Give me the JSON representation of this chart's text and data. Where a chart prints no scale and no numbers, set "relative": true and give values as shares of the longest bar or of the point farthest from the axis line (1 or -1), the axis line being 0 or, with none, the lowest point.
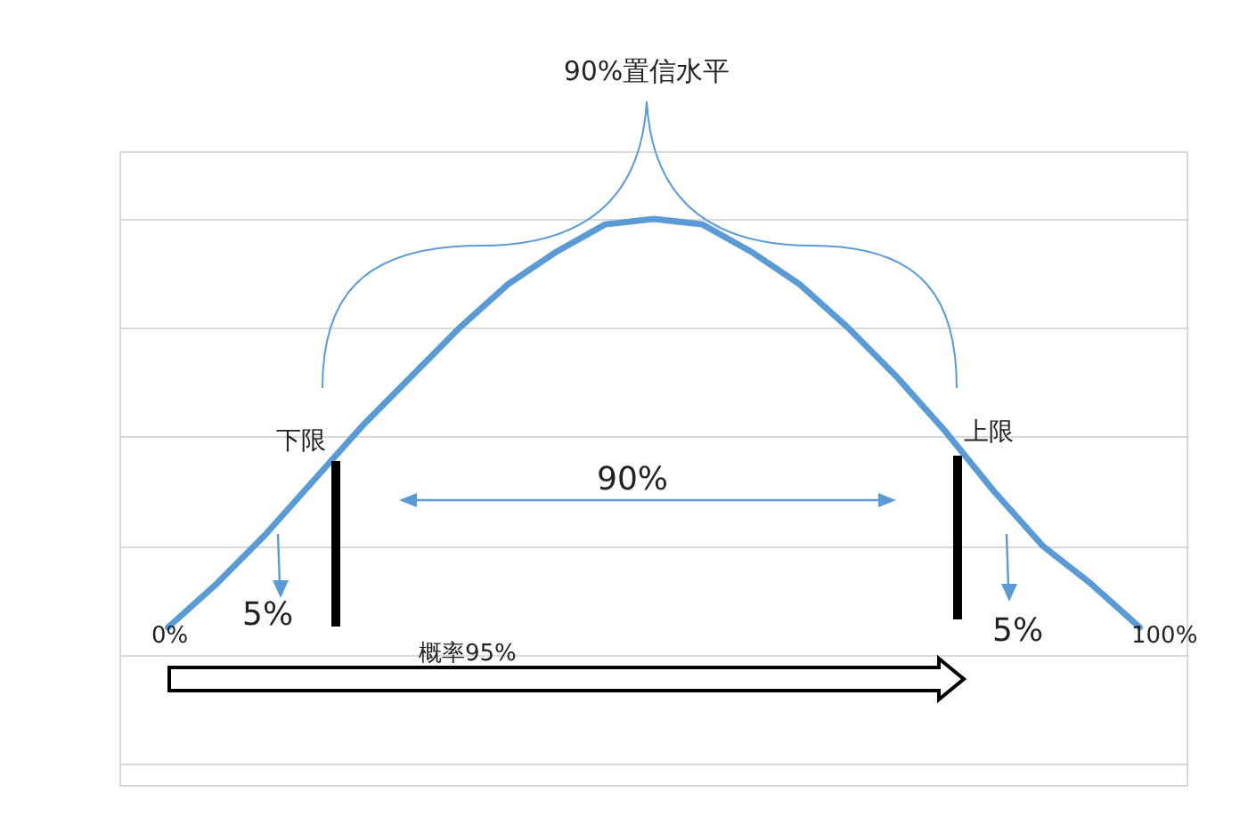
{
  "chart_data": {
    "type": "line",
    "relative": true,
    "grid": "y",
    "categories": [
      null,
      null,
      null,
      null,
      null,
      null,
      null,
      null,
      null,
      null,
      null,
      null,
      null,
      null,
      null,
      null,
      null,
      null,
      null,
      null,
      null
    ],
    "series": [
      {
        "color": "#5b9bd5",
        "values": [
          0.25,
          0.33,
          0.42,
          0.52,
          0.62,
          0.71,
          0.8,
          0.88,
          0.94,
          0.99,
          1,
          0.99,
          0.94,
          0.88,
          0.8,
          0.71,
          0.61,
          0.5,
          0.4,
          0.33,
          0.25
        ]
      }
    ],
    "annotations": [
      "90%置信水平",
      "下限",
      "上限",
      "90%",
      "5%",
      "5%",
      "0%",
      "100%",
      "概率95%"
    ]
  }
}
